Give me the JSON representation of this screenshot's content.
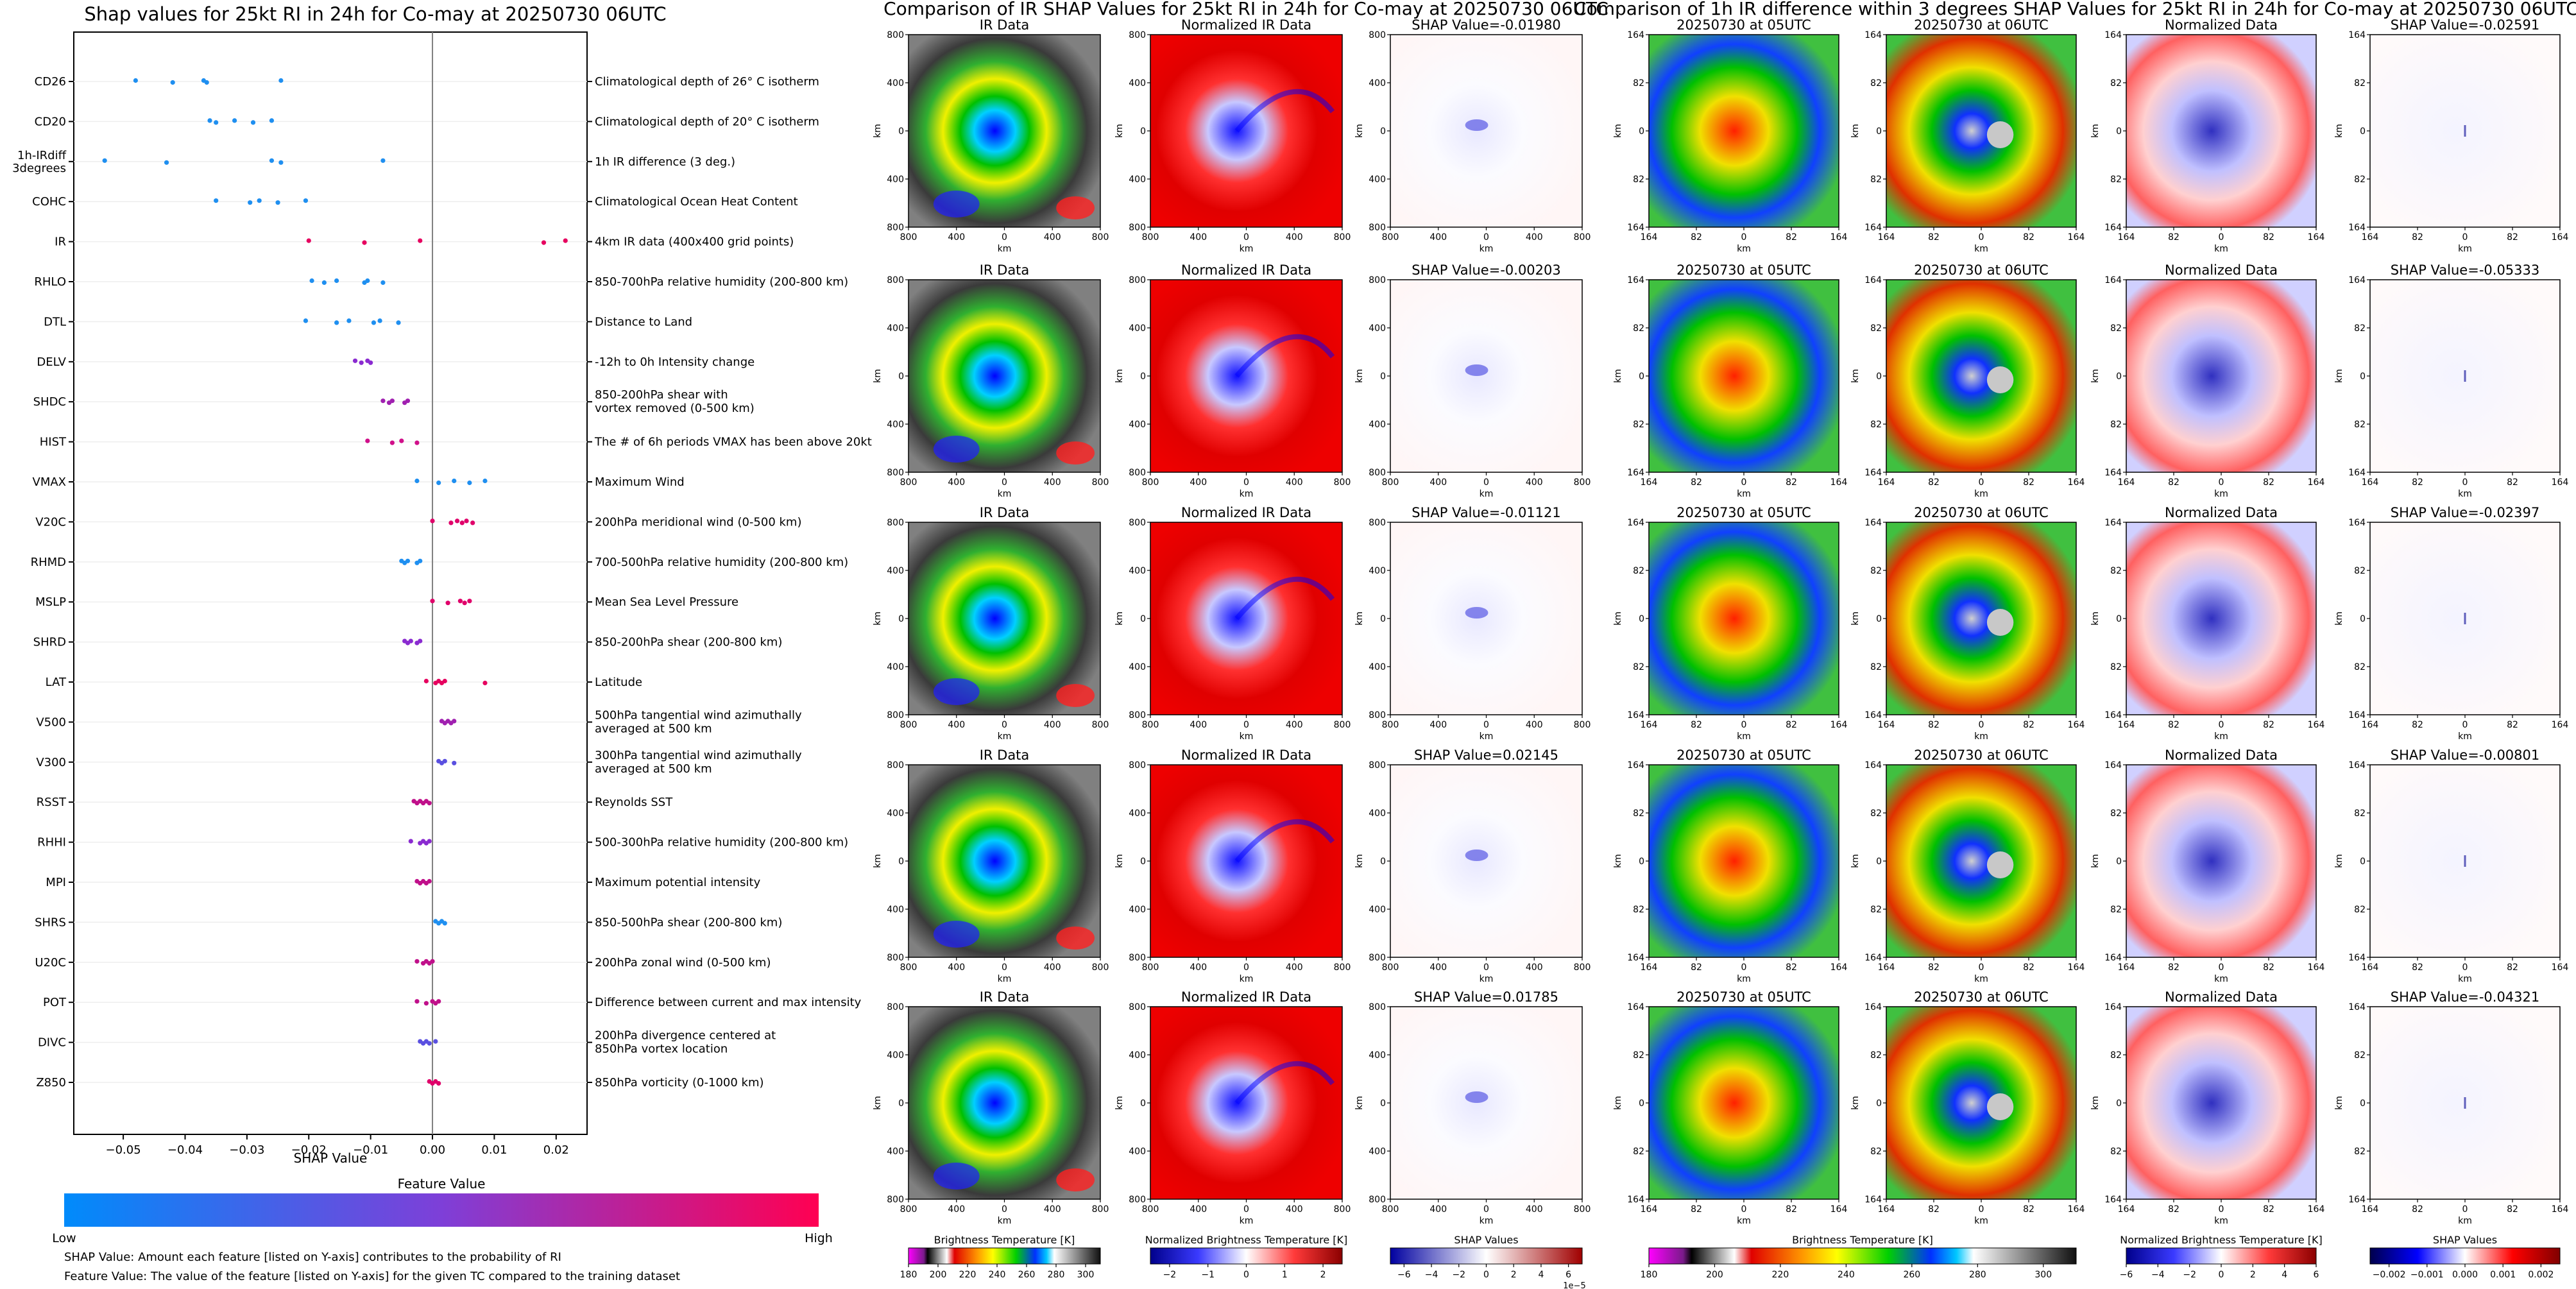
{
  "chart_data": [
    {
      "type": "scatter",
      "title": "Shap values for 25kt RI in 24h for Co-may at 20250730 06UTC",
      "xlabel": "SHAP Value",
      "xlim": [
        -0.058,
        0.025
      ],
      "xticks": [
        -0.05,
        -0.04,
        -0.03,
        -0.02,
        -0.01,
        0.0,
        0.01,
        0.02
      ],
      "xtick_labels": [
        "−0.05",
        "−0.04",
        "−0.03",
        "−0.02",
        "−0.01",
        "0.00",
        "0.01",
        "0.02"
      ],
      "features": [
        {
          "name": "CD26",
          "description": "Climatological depth of 26° C isotherm",
          "color": "#1f8ff0",
          "points": [
            -0.048,
            -0.042,
            -0.037,
            -0.0365,
            -0.0245
          ]
        },
        {
          "name": "CD20",
          "description": "Climatological depth of 20° C isotherm",
          "color": "#1f8ff0",
          "points": [
            -0.036,
            -0.035,
            -0.032,
            -0.029,
            -0.026
          ]
        },
        {
          "name": "1h-IRdiff 3degrees",
          "description": "1h IR difference (3 deg.)",
          "color": "#1f8ff0",
          "points": [
            -0.053,
            -0.043,
            -0.026,
            -0.0245,
            -0.008
          ]
        },
        {
          "name": "COHC",
          "description": "Climatological Ocean Heat Content",
          "color": "#1f8ff0",
          "points": [
            -0.035,
            -0.0295,
            -0.028,
            -0.025,
            -0.0205
          ]
        },
        {
          "name": "IR",
          "description": "4km IR data (400x400 grid points)",
          "color": "#e6005f",
          "points": [
            -0.02,
            -0.011,
            -0.002,
            0.018,
            0.0215
          ]
        },
        {
          "name": "RHLO",
          "description": "850-700hPa relative humidity (200-800 km)",
          "color": "#1f8ff0",
          "points": [
            -0.0195,
            -0.0175,
            -0.0155,
            -0.011,
            -0.0105,
            -0.008
          ]
        },
        {
          "name": "DTL",
          "description": "Distance to Land",
          "color": "#1f8ff0",
          "points": [
            -0.0205,
            -0.0155,
            -0.0135,
            -0.0095,
            -0.0085,
            -0.0055
          ]
        },
        {
          "name": "DELV",
          "description": "-12h to 0h Intensity change",
          "color": "#8a2bd0",
          "points": [
            -0.0125,
            -0.0115,
            -0.0105,
            -0.01
          ]
        },
        {
          "name": "SHDC",
          "description": "850-200hPa shear with\nvortex removed (0-500 km)",
          "color": "#a020b0",
          "points": [
            -0.008,
            -0.007,
            -0.0065,
            -0.0045,
            -0.004
          ]
        },
        {
          "name": "HIST",
          "description": "The # of 6h periods VMAX has been above 20kt",
          "color": "#d0108a",
          "points": [
            -0.0105,
            -0.0065,
            -0.005,
            -0.0025
          ]
        },
        {
          "name": "VMAX",
          "description": "Maximum Wind",
          "color": "#1f8ff0",
          "points": [
            -0.0025,
            0.001,
            0.0035,
            0.006,
            0.0085
          ]
        },
        {
          "name": "V20C",
          "description": "200hPa meridional wind (0-500 km)",
          "color": "#e0006a",
          "points": [
            0.0,
            0.003,
            0.004,
            0.0048,
            0.0055,
            0.0065
          ]
        },
        {
          "name": "RHMD",
          "description": "700-500hPa relative humidity (200-800 km)",
          "color": "#1f8ff0",
          "points": [
            -0.005,
            -0.0045,
            -0.004,
            -0.0025,
            -0.002
          ]
        },
        {
          "name": "MSLP",
          "description": "Mean Sea Level Pressure",
          "color": "#e0006a",
          "points": [
            0.0,
            0.0025,
            0.0045,
            0.0052,
            0.006
          ]
        },
        {
          "name": "SHRD",
          "description": "850-200hPa shear (200-800 km)",
          "color": "#8a2bd0",
          "points": [
            -0.0045,
            -0.004,
            -0.0035,
            -0.0025,
            -0.002
          ]
        },
        {
          "name": "LAT",
          "description": "Latitude",
          "color": "#e6005f",
          "points": [
            -0.001,
            0.0005,
            0.001,
            0.0015,
            0.002,
            0.0085
          ]
        },
        {
          "name": "V500",
          "description": "500hPa tangential wind azimuthally\naveraged at 500 km",
          "color": "#a020b0",
          "points": [
            0.0015,
            0.002,
            0.0025,
            0.003,
            0.0035
          ]
        },
        {
          "name": "V300",
          "description": "300hPa tangential wind azimuthally\naveraged at 500 km",
          "color": "#5a50e0",
          "points": [
            0.001,
            0.0015,
            0.002,
            0.0035
          ]
        },
        {
          "name": "RSST",
          "description": "Reynolds SST",
          "color": "#c0108a",
          "points": [
            -0.003,
            -0.0025,
            -0.002,
            -0.0015,
            -0.001,
            -0.0005
          ]
        },
        {
          "name": "RHHI",
          "description": "500-300hPa relative humidity (200-800 km)",
          "color": "#8a2bd0",
          "points": [
            -0.0035,
            -0.002,
            -0.0015,
            -0.001,
            -0.0005
          ]
        },
        {
          "name": "MPI",
          "description": "Maximum potential intensity",
          "color": "#c0108a",
          "points": [
            -0.0025,
            -0.002,
            -0.0015,
            -0.001,
            -0.0005
          ]
        },
        {
          "name": "SHRS",
          "description": "850-500hPa shear (200-800 km)",
          "color": "#1f8ff0",
          "points": [
            0.0005,
            0.001,
            0.0015,
            0.002
          ]
        },
        {
          "name": "U20C",
          "description": "200hPa zonal wind (0-500 km)",
          "color": "#c0108a",
          "points": [
            -0.0025,
            -0.0015,
            -0.001,
            -0.0005,
            0.0
          ]
        },
        {
          "name": "POT",
          "description": "Difference between current and max intensity",
          "color": "#c0108a",
          "points": [
            -0.0025,
            -0.001,
            0.0,
            0.0005,
            0.001
          ]
        },
        {
          "name": "DIVC",
          "description": "200hPa divergence centered at\n850hPa vortex location",
          "color": "#5a50e0",
          "points": [
            -0.002,
            -0.0015,
            -0.001,
            -0.0005,
            0.0005
          ]
        },
        {
          "name": "Z850",
          "description": "850hPa vorticity (0-1000 km)",
          "color": "#e0006a",
          "points": [
            -0.0005,
            0.0,
            0.0005,
            0.001
          ]
        }
      ],
      "colorbar": {
        "title": "Feature Value",
        "low_label": "Low",
        "high_label": "High",
        "colors": [
          "#008bfb",
          "#7e3fd8",
          "#ff0052"
        ]
      },
      "notes": [
        "SHAP Value: Amount each feature [listed on Y-axis] contributes to the probability of RI",
        "Feature Value: The value of the feature [listed on Y-axis] for the given TC compared to the training dataset"
      ]
    },
    {
      "type": "heatmap",
      "title": "Comparison of IR SHAP Values for 25kt RI in 24h for Co-may at 20250730 06UTC",
      "column_titles": [
        "IR Data",
        "Normalized IR Data"
      ],
      "row_shap_titles": [
        "SHAP Value=-0.01980",
        "SHAP Value=-0.00203",
        "SHAP Value=-0.01121",
        "SHAP Value=0.02145",
        "SHAP Value=0.01785"
      ],
      "axis_label": "km",
      "tick_labels": [
        "800",
        "400",
        "0",
        "400",
        "800"
      ],
      "colorbars": [
        {
          "label": "Brightness Temperature [K]",
          "range": [
            180,
            310
          ],
          "tick_labels": [
            "180",
            "200",
            "220",
            "240",
            "260",
            "280",
            "300"
          ]
        },
        {
          "label": "Normalized Brightness Temperature [K]",
          "range": [
            -2.5,
            2.5
          ],
          "tick_labels": [
            "−2",
            "−1",
            "0",
            "1",
            "2"
          ]
        },
        {
          "label": "SHAP Values",
          "range": [
            -7,
            7
          ],
          "tick_labels": [
            "−6",
            "−4",
            "−2",
            "0",
            "2",
            "4",
            "6"
          ],
          "offset_label": "1e−5"
        }
      ]
    },
    {
      "type": "heatmap",
      "title": "Comparison of 1h IR difference within 3 degrees SHAP Values for 25kt RI in 24h for Co-may at 20250730 06UTC",
      "column_titles": [
        "20250730 at 05UTC",
        "20250730 at 06UTC",
        "Normalized Data"
      ],
      "row_shap_titles": [
        "SHAP Value=-0.02591",
        "SHAP Value=-0.05333",
        "SHAP Value=-0.02397",
        "SHAP Value=-0.00801",
        "SHAP Value=-0.04321"
      ],
      "axis_label": "km",
      "tick_labels": [
        "164",
        "82",
        "0",
        "82",
        "164"
      ],
      "colorbars": [
        {
          "label": "Brightness Temperature [K]",
          "range": [
            180,
            310
          ],
          "tick_labels": [
            "180",
            "200",
            "220",
            "240",
            "260",
            "280",
            "300"
          ]
        },
        {
          "label": "Normalized Brightness Temperature [K]",
          "range": [
            -6,
            6
          ],
          "tick_labels": [
            "−6",
            "−4",
            "−2",
            "0",
            "2",
            "4",
            "6"
          ]
        },
        {
          "label": "SHAP Values",
          "range": [
            -0.0025,
            0.0025
          ],
          "tick_labels": [
            "−0.002",
            "−0.001",
            "0.000",
            "0.001",
            "0.002"
          ]
        }
      ]
    }
  ]
}
